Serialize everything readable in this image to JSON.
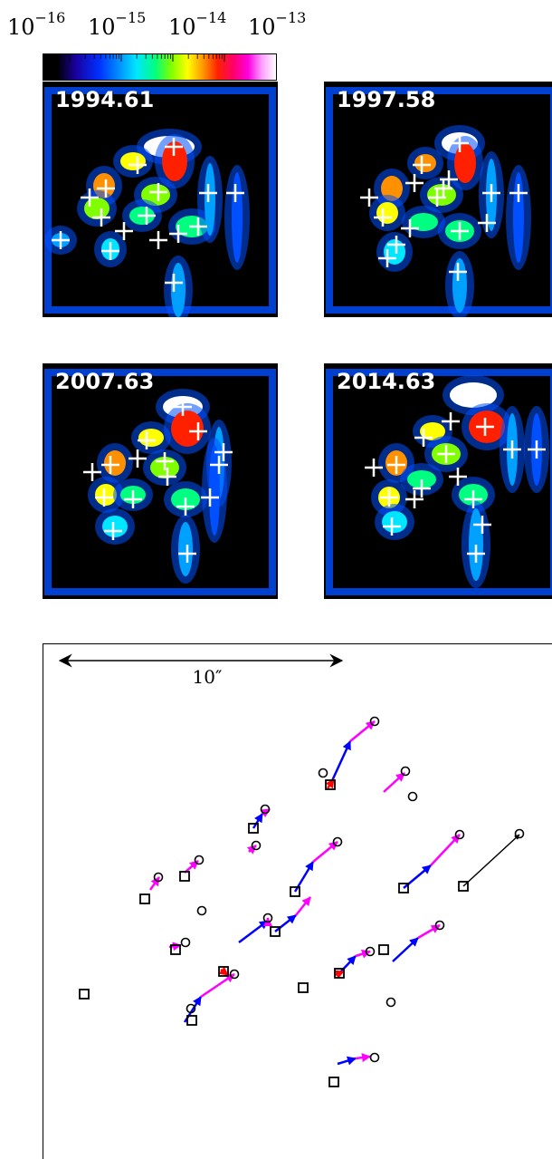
{
  "colorbar": {
    "tick_labels": [
      "10",
      "10",
      "10",
      "10"
    ],
    "tick_exponents": [
      "−16",
      "−15",
      "−14",
      "−13"
    ],
    "colormap": "black-blue-cyan-green-yellow-red-magenta-white"
  },
  "panels": [
    {
      "epoch": "1994.61"
    },
    {
      "epoch": "1997.58"
    },
    {
      "epoch": "2007.63"
    },
    {
      "epoch": "2014.63"
    }
  ],
  "scale_bar": {
    "label": "10″"
  },
  "colors": {
    "arrow_early": "#ff00ff",
    "arrow_mid": "#0000ff",
    "arrow_late": "#ff0000",
    "arrow_single": "#000000",
    "marker": "#000000"
  },
  "chart_data": {
    "type": "scatter",
    "title": "",
    "xlabel": "",
    "ylabel": "",
    "series": [
      {
        "name": "",
        "marker": "square",
        "points": [
          [
            365,
            866
          ],
          [
            280,
            914
          ],
          [
            204,
            967
          ],
          [
            160,
            992
          ],
          [
            326,
            984
          ],
          [
            304,
            1028
          ],
          [
            194,
            1048
          ],
          [
            247,
            1072
          ],
          [
            375,
            1074
          ],
          [
            424,
            1048
          ],
          [
            93,
            1097
          ],
          [
            335,
            1090
          ],
          [
            212,
            1126
          ],
          [
            446,
            980
          ],
          [
            512,
            978
          ],
          [
            369,
            1194
          ]
        ]
      },
      {
        "name": "",
        "marker": "circle",
        "points": [
          [
            414,
            796
          ],
          [
            357,
            853
          ],
          [
            448,
            851
          ],
          [
            456,
            879
          ],
          [
            293,
            893
          ],
          [
            283,
            933
          ],
          [
            220,
            949
          ],
          [
            175,
            968
          ],
          [
            373,
            929
          ],
          [
            508,
            921
          ],
          [
            574,
            920
          ],
          [
            223,
            1005
          ],
          [
            296,
            1013
          ],
          [
            486,
            1021
          ],
          [
            205,
            1040
          ],
          [
            409,
            1050
          ],
          [
            259,
            1075
          ],
          [
            432,
            1106
          ],
          [
            211,
            1113
          ],
          [
            414,
            1167
          ]
        ]
      }
    ]
  }
}
